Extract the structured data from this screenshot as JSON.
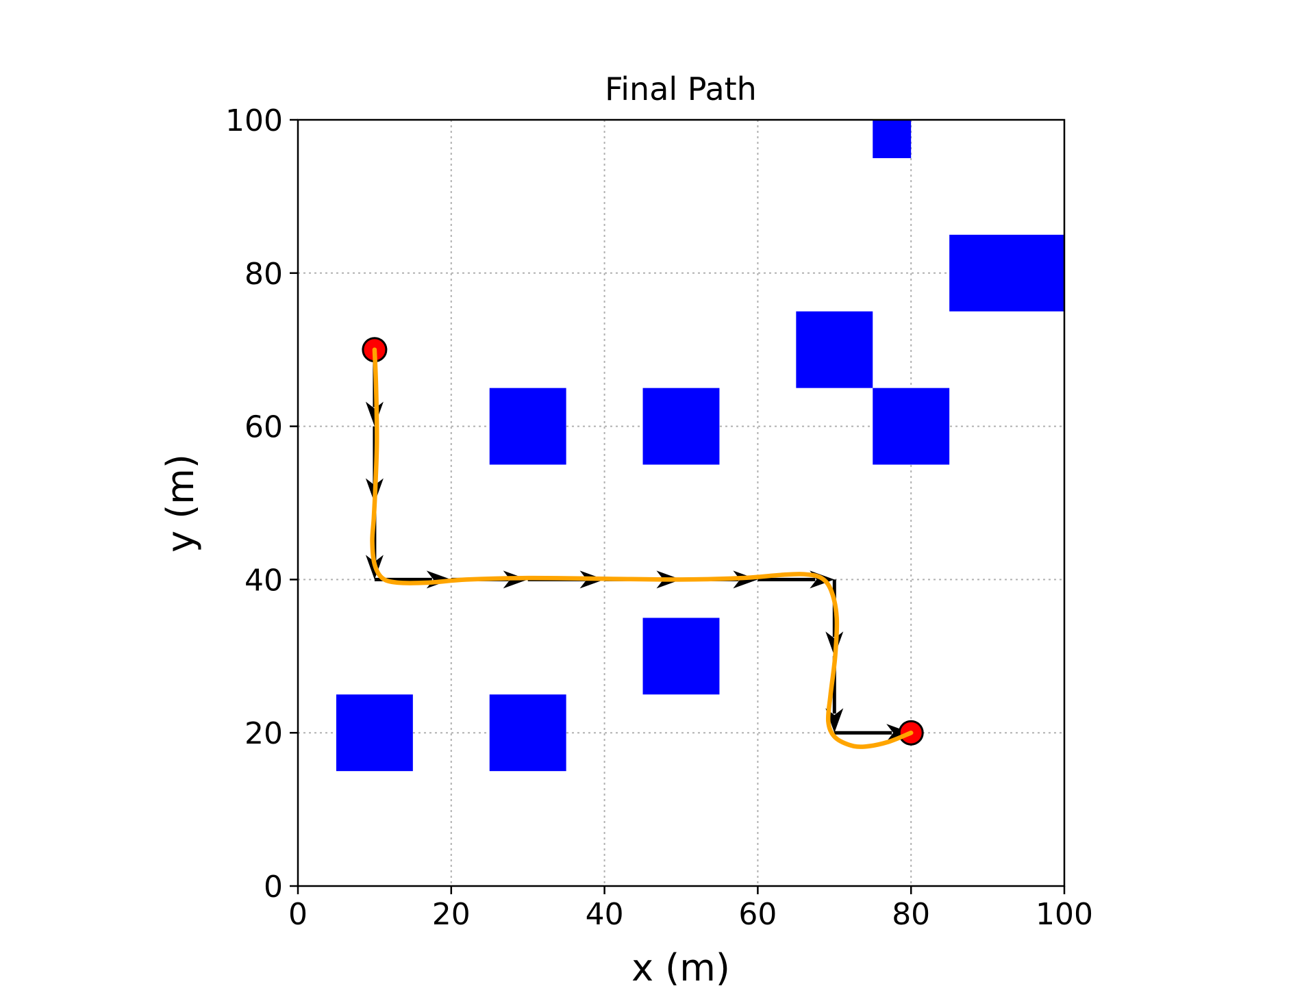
{
  "chart_data": {
    "type": "scatter",
    "title": "Final Path",
    "xlabel": "x (m)",
    "ylabel": "y (m)",
    "xlim": [
      0,
      100
    ],
    "ylim": [
      0,
      100
    ],
    "xticks": [
      0,
      20,
      40,
      60,
      80,
      100
    ],
    "yticks": [
      0,
      20,
      40,
      60,
      80,
      100
    ],
    "x_tick_labels": [
      "0",
      "20",
      "40",
      "60",
      "80",
      "100"
    ],
    "y_tick_labels": [
      "0",
      "20",
      "40",
      "60",
      "80",
      "100"
    ],
    "grid": true,
    "obstacles": [
      {
        "x0": 75,
        "y0": 95,
        "x1": 80,
        "y1": 100
      },
      {
        "x0": 85,
        "y0": 75,
        "x1": 100,
        "y1": 85
      },
      {
        "x0": 65,
        "y0": 65,
        "x1": 75,
        "y1": 75
      },
      {
        "x0": 25,
        "y0": 55,
        "x1": 35,
        "y1": 65
      },
      {
        "x0": 45,
        "y0": 55,
        "x1": 55,
        "y1": 65
      },
      {
        "x0": 75,
        "y0": 55,
        "x1": 85,
        "y1": 65
      },
      {
        "x0": 45,
        "y0": 25,
        "x1": 55,
        "y1": 35
      },
      {
        "x0": 5,
        "y0": 15,
        "x1": 15,
        "y1": 25
      },
      {
        "x0": 25,
        "y0": 15,
        "x1": 35,
        "y1": 25
      }
    ],
    "start": {
      "x": 10,
      "y": 70
    },
    "goal": {
      "x": 80,
      "y": 20
    },
    "waypoint_arrows": [
      {
        "x0": 10,
        "y0": 70,
        "x1": 10,
        "y1": 60
      },
      {
        "x0": 10,
        "y0": 60,
        "x1": 10,
        "y1": 50
      },
      {
        "x0": 10,
        "y0": 50,
        "x1": 10,
        "y1": 40
      },
      {
        "x0": 10,
        "y0": 40,
        "x1": 20,
        "y1": 40
      },
      {
        "x0": 20,
        "y0": 40,
        "x1": 30,
        "y1": 40
      },
      {
        "x0": 30,
        "y0": 40,
        "x1": 40,
        "y1": 40
      },
      {
        "x0": 40,
        "y0": 40,
        "x1": 50,
        "y1": 40
      },
      {
        "x0": 50,
        "y0": 40,
        "x1": 60,
        "y1": 40
      },
      {
        "x0": 60,
        "y0": 40,
        "x1": 70,
        "y1": 40
      },
      {
        "x0": 70,
        "y0": 40,
        "x1": 70,
        "y1": 30
      },
      {
        "x0": 70,
        "y0": 30,
        "x1": 70,
        "y1": 20
      },
      {
        "x0": 70,
        "y0": 20,
        "x1": 80,
        "y1": 20
      }
    ],
    "smooth_path": [
      [
        10,
        70
      ],
      [
        10.2,
        65
      ],
      [
        10.3,
        58
      ],
      [
        10.1,
        52
      ],
      [
        9.9,
        48
      ],
      [
        9.7,
        45
      ],
      [
        10,
        42
      ],
      [
        11,
        40.2
      ],
      [
        13,
        39.6
      ],
      [
        17,
        39.6
      ],
      [
        22,
        40.0
      ],
      [
        30,
        40.2
      ],
      [
        40,
        40.1
      ],
      [
        50,
        40.0
      ],
      [
        58,
        40.2
      ],
      [
        63,
        40.6
      ],
      [
        66,
        40.7
      ],
      [
        68.3,
        40.2
      ],
      [
        69.6,
        38.5
      ],
      [
        70.3,
        35
      ],
      [
        70.1,
        30
      ],
      [
        69.5,
        25
      ],
      [
        69.2,
        21.5
      ],
      [
        70,
        19.5
      ],
      [
        72,
        18.4
      ],
      [
        74,
        18.2
      ],
      [
        77,
        18.8
      ],
      [
        80,
        20
      ]
    ],
    "colors": {
      "obstacle": "#0000ff",
      "path": "#ffa500",
      "arrow": "#000000",
      "marker_fill": "#ff0000",
      "marker_edge": "#000000",
      "grid": "#b0b0b0"
    }
  }
}
